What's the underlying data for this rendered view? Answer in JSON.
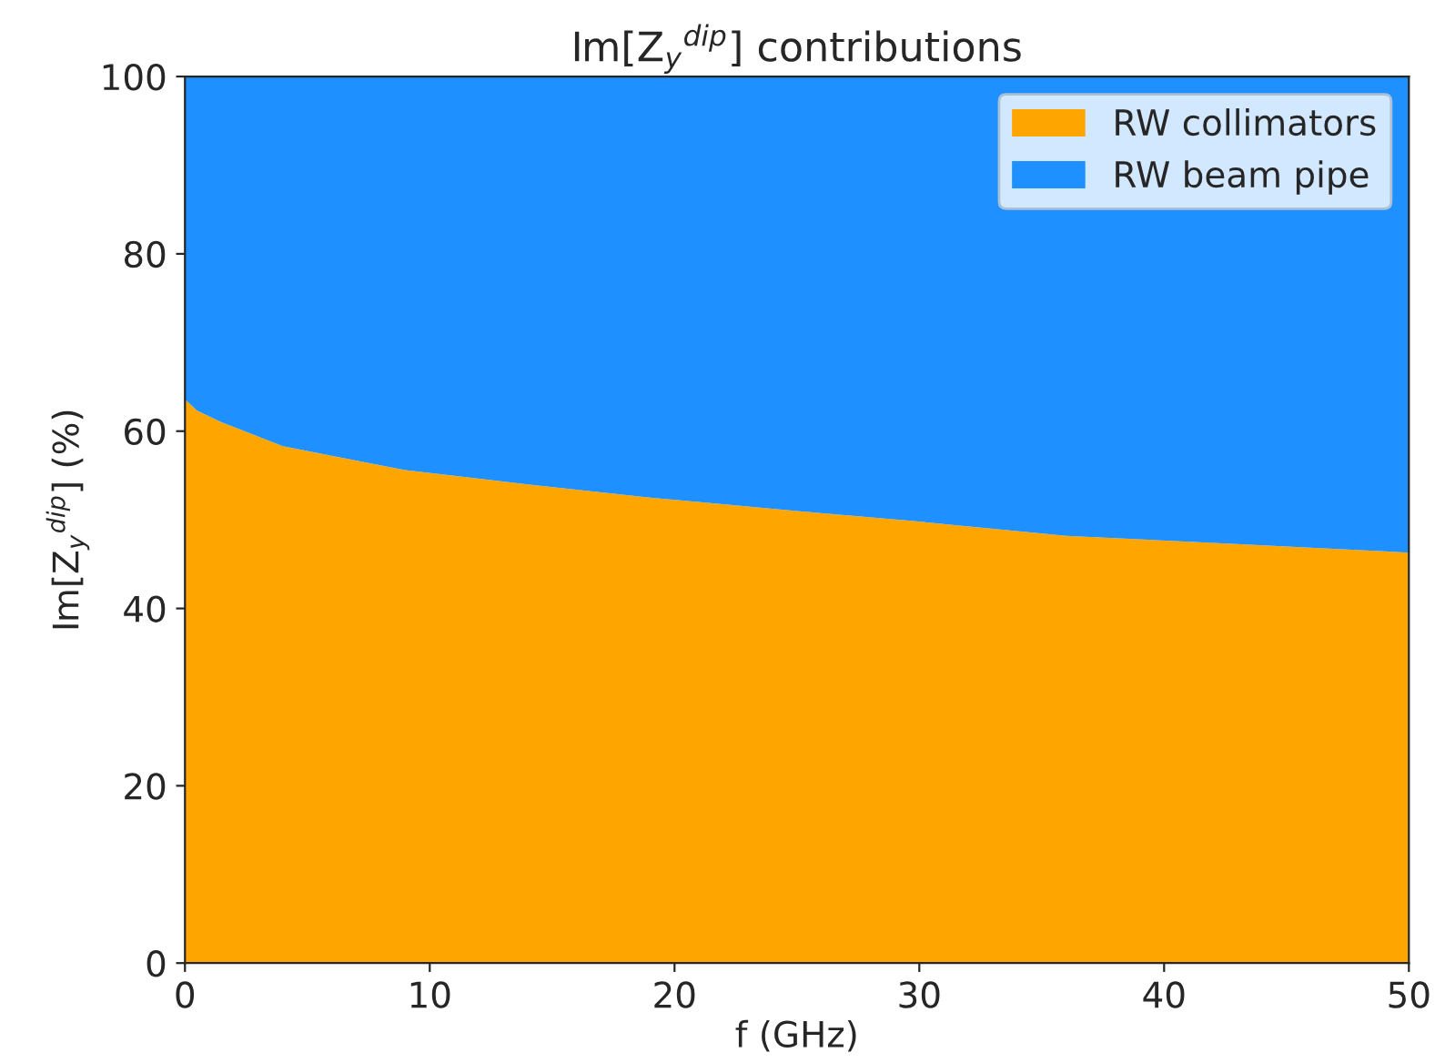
{
  "chart_data": {
    "type": "area",
    "stacked": true,
    "title": "Im[Z$_{y}$$^{dip}$] contributions",
    "xlabel": "f (GHz)",
    "ylabel": "Im[Z$_{y}$$^{dip}$] (%)",
    "x": [
      0,
      0.5,
      1.5,
      4,
      9,
      14,
      19,
      25,
      30,
      36,
      42,
      50
    ],
    "series": [
      {
        "name": "RW collimators",
        "color": "#ffa500",
        "values": [
          63.6,
          62.3,
          61.0,
          58.3,
          55.6,
          54.0,
          52.5,
          51.0,
          49.8,
          48.2,
          47.4,
          46.3
        ]
      },
      {
        "name": "RW beam pipe",
        "color": "#1e90ff",
        "values": [
          36.4,
          37.7,
          39.0,
          41.7,
          44.4,
          46.0,
          47.5,
          49.0,
          50.2,
          51.8,
          52.6,
          53.7
        ]
      }
    ],
    "xlim": [
      0,
      50
    ],
    "xticks": [
      0,
      10,
      20,
      30,
      40,
      50
    ],
    "ylim": [
      0,
      100
    ],
    "yticks": [
      0,
      20,
      40,
      60,
      80,
      100
    ],
    "grid": false,
    "legend": "top right"
  }
}
